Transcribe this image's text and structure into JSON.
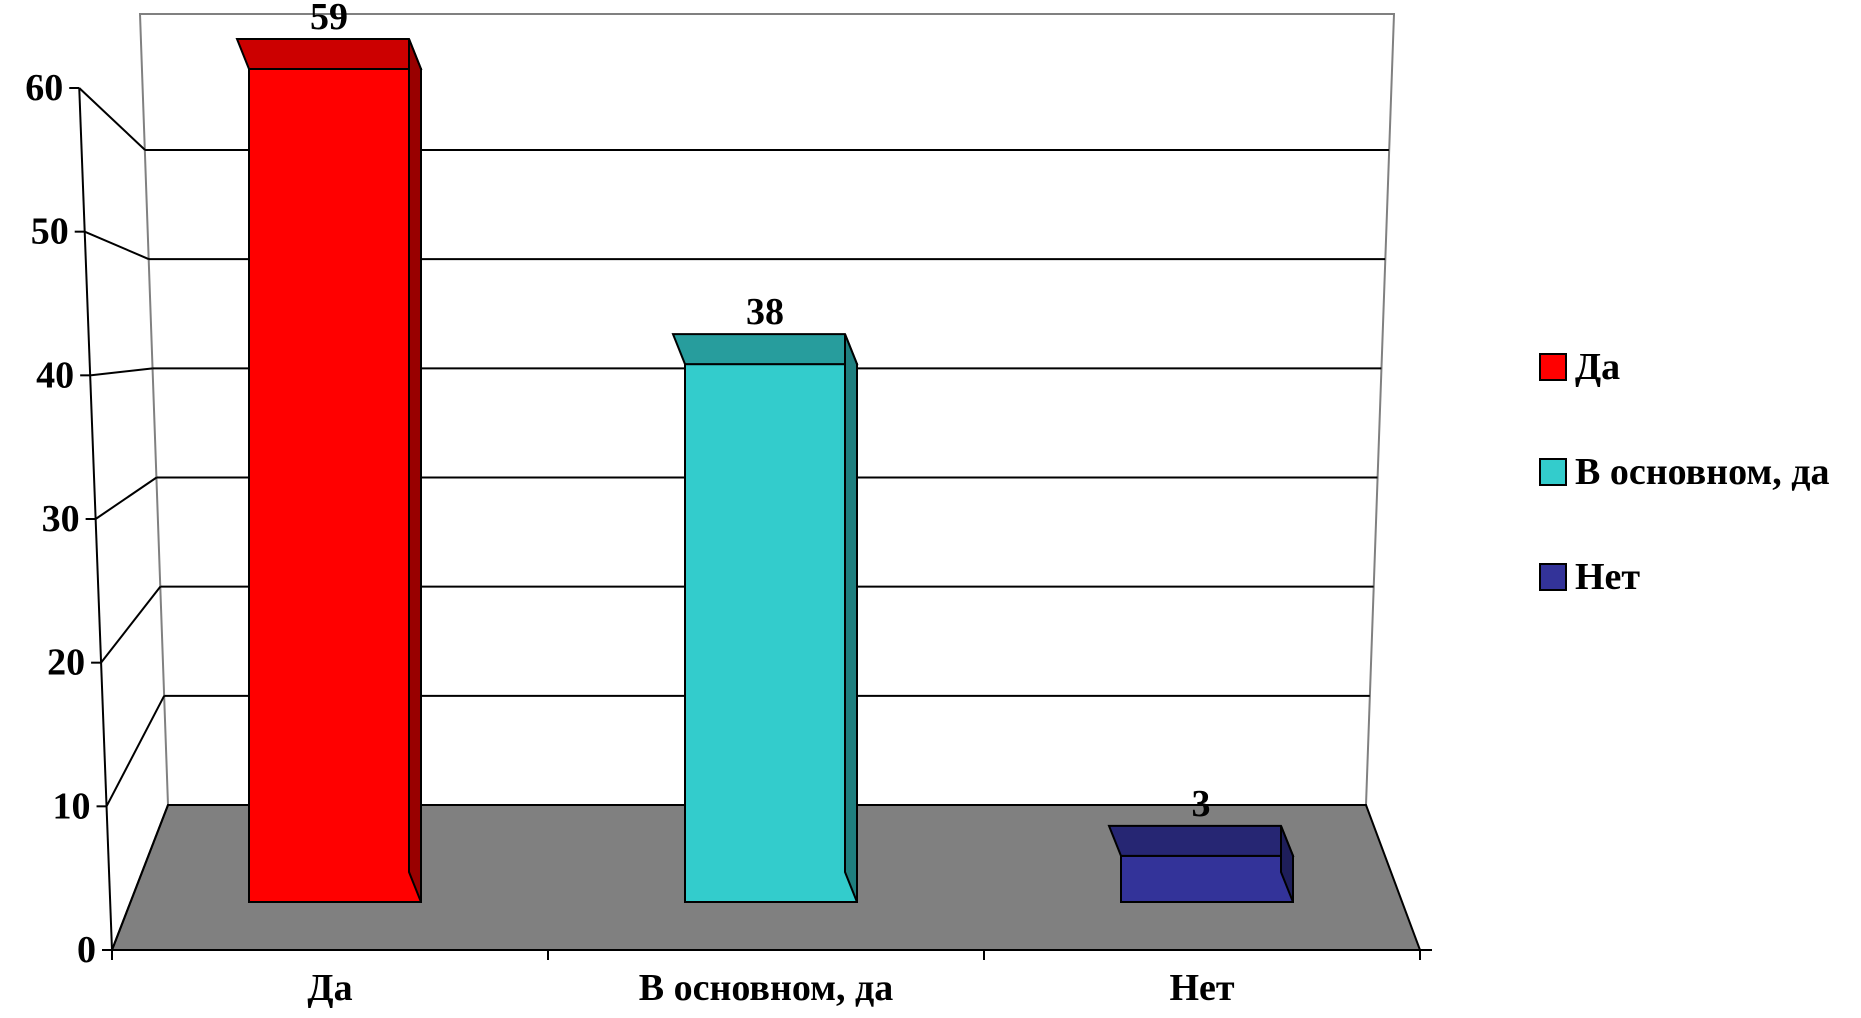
{
  "chart_data": {
    "type": "bar",
    "style": "3d-column",
    "categories": [
      "Да",
      "В основном, да",
      "Нет"
    ],
    "values": [
      59,
      38,
      3
    ],
    "data_labels": [
      "59",
      "38",
      "3"
    ],
    "ylim": [
      0,
      60
    ],
    "yticks": [
      "0",
      "10",
      "20",
      "30",
      "40",
      "50",
      "60"
    ],
    "grid": true,
    "legend": {
      "position": "right",
      "entries": [
        "Да",
        "В основном, да",
        "Нет"
      ]
    },
    "colors": [
      {
        "front": "#ff0000",
        "top": "#cc0000",
        "side": "#990000"
      },
      {
        "front": "#33cccc",
        "top": "#279d9d",
        "side": "#1f7f7f"
      },
      {
        "front": "#333399",
        "top": "#262673",
        "side": "#1e1e5a"
      }
    ],
    "floor_color": "#808080"
  }
}
